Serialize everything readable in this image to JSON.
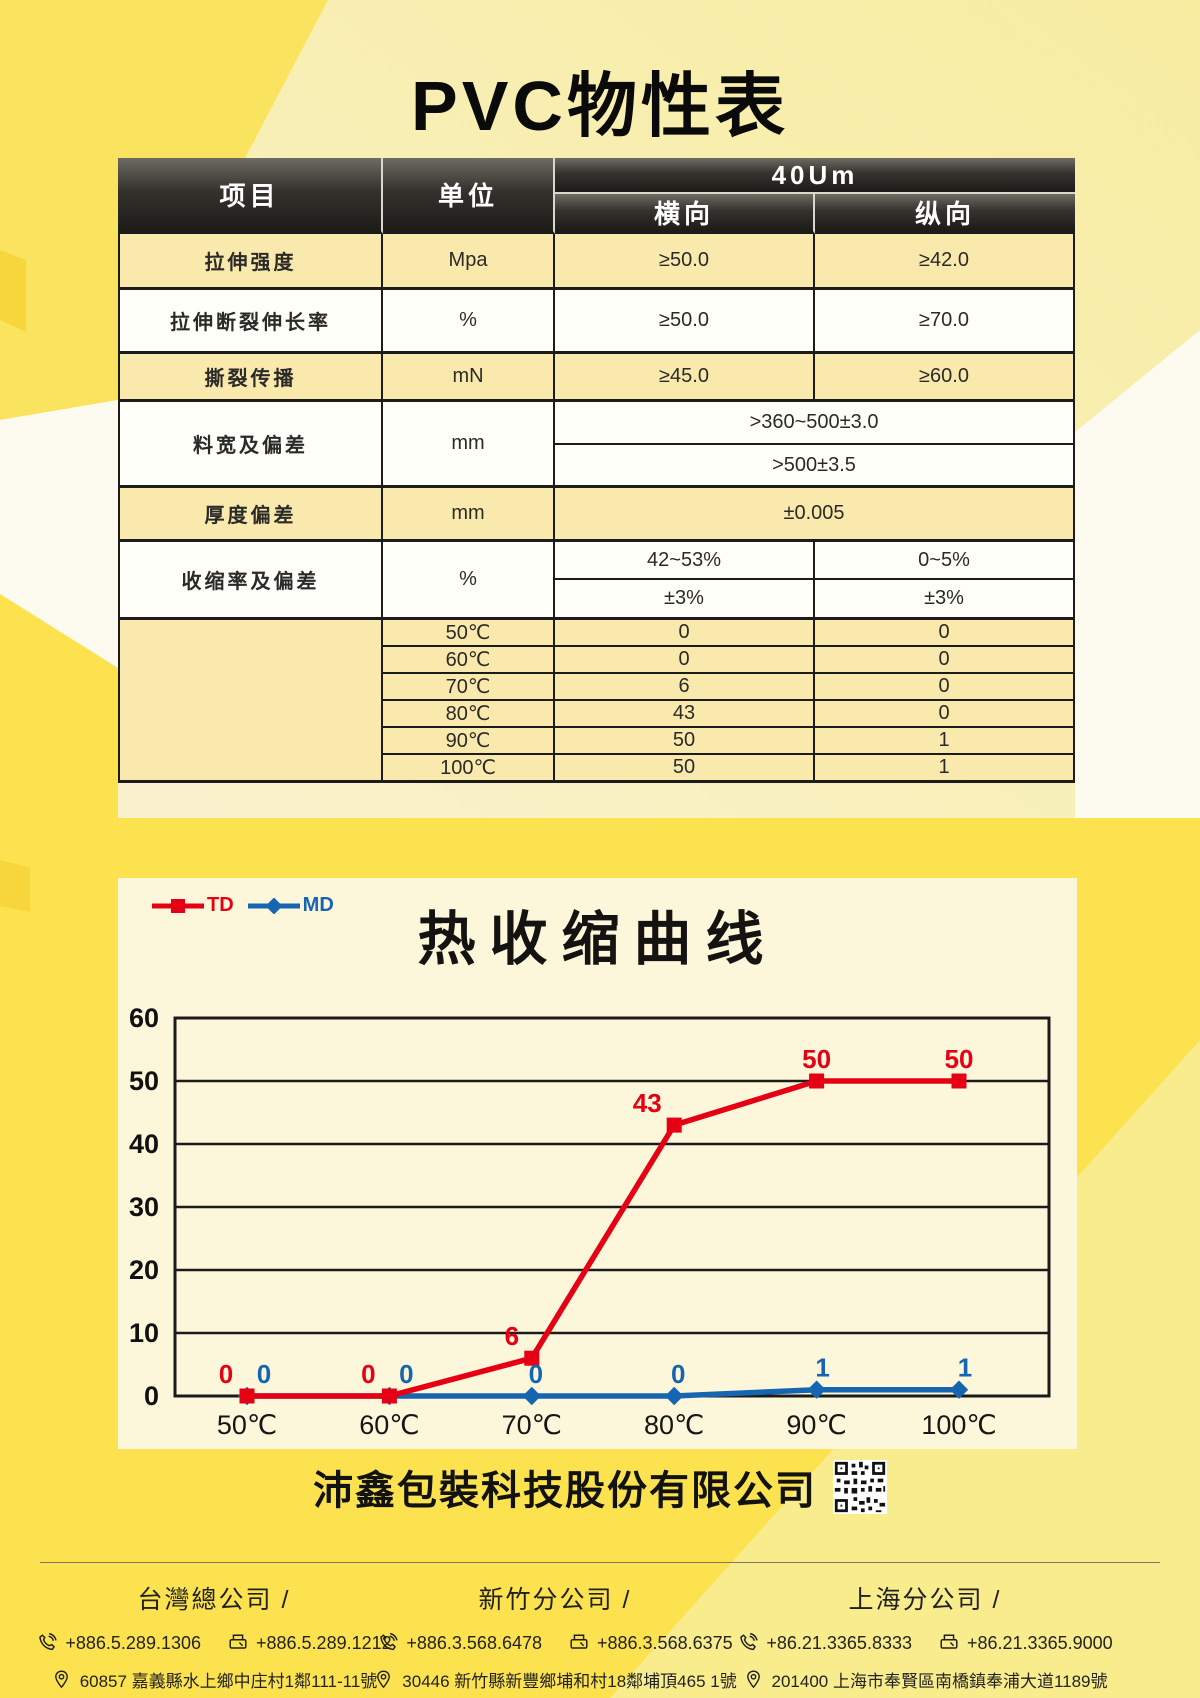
{
  "page": {
    "title": "PVC物性表"
  },
  "theme": {
    "yellow_bright": "#fbe24e",
    "yellow_wedge": "#fae45f",
    "cream_base": "#faf3d2",
    "cream_soft": "#f7eca0",
    "near_white": "#fdfbef",
    "panel_bg": "#fcf7da",
    "light_wedge_bottom": "#f8ec8c",
    "facet_orange": "#f7d63c",
    "table_yellow": "#fae9ac",
    "table_white": "#fffef9",
    "border_black": "#1c1c1c",
    "td_red": "#e50014",
    "md_blue": "#1565b0"
  },
  "table": {
    "headers": {
      "item": "项目",
      "unit": "单位",
      "group": "40Um",
      "col1": "横向",
      "col2": "纵向"
    },
    "rows": [
      {
        "item": "拉伸强度",
        "unit": "Mpa",
        "td": "≥50.0",
        "md": "≥42.0"
      },
      {
        "item": "拉伸断裂伸长率",
        "unit": "%",
        "td": "≥50.0",
        "md": "≥70.0"
      },
      {
        "item": "撕裂传播",
        "unit": "mN",
        "td": "≥45.0",
        "md": "≥60.0"
      },
      {
        "item": "料宽及偏差",
        "unit": "mm",
        "line1": ">360~500±3.0",
        "line2": ">500±3.5"
      },
      {
        "item": "厚度偏差",
        "unit": "mm",
        "value": "±0.005"
      },
      {
        "item": "收缩率及偏差",
        "unit": "%",
        "td1": "42~53%",
        "md1": "0~5%",
        "td2": "±3%",
        "md2": "±3%"
      }
    ],
    "temp_rows": [
      {
        "temp": "50℃",
        "td": "0",
        "md": "0"
      },
      {
        "temp": "60℃",
        "td": "0",
        "md": "0"
      },
      {
        "temp": "70℃",
        "td": "6",
        "md": "0"
      },
      {
        "temp": "80℃",
        "td": "43",
        "md": "0"
      },
      {
        "temp": "90℃",
        "td": "50",
        "md": "1"
      },
      {
        "temp": "100℃",
        "td": "50",
        "md": "1"
      }
    ]
  },
  "chart_data": {
    "type": "line",
    "title": "热收缩曲线",
    "categories": [
      "50℃",
      "60℃",
      "70℃",
      "80℃",
      "90℃",
      "100℃"
    ],
    "series": [
      {
        "name": "TD",
        "color": "#e50014",
        "marker": "square",
        "values": [
          0,
          0,
          6,
          43,
          50,
          50
        ]
      },
      {
        "name": "MD",
        "color": "#1565b0",
        "marker": "diamond",
        "values": [
          0,
          0,
          0,
          0,
          1,
          1
        ]
      }
    ],
    "xlabel": "",
    "ylabel": "",
    "ylim": [
      0,
      60
    ],
    "ytick_step": 10,
    "grid": true,
    "legend_position": "top-left"
  },
  "footer": {
    "company": "沛鑫包裝科技股份有限公司",
    "offices": [
      {
        "name": "台灣總公司 /",
        "phone": "+886.5.289.1306",
        "fax": "+886.5.289.1212",
        "address": "60857 嘉義縣水上鄉中庄村1鄰111-11號"
      },
      {
        "name": "新竹分公司 /",
        "phone": "+886.3.568.6478",
        "fax": "+886.3.568.6375",
        "address": "30446 新竹縣新豐鄉埔和村18鄰埔頂465 1號"
      },
      {
        "name": "上海分公司 /",
        "phone": "+86.21.3365.8333",
        "fax": "+86.21.3365.9000",
        "address": "201400 上海市奉賢區南橋鎮奉浦大道1189號"
      }
    ]
  },
  "icons": {
    "phone": "handset-with-waves",
    "fax": "fax-machine",
    "location": "map-pin",
    "qr": "qr-code"
  }
}
